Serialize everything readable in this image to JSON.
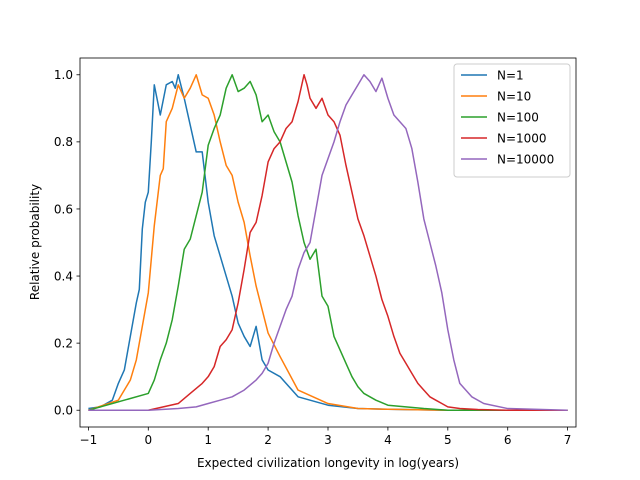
{
  "chart_data": {
    "type": "line",
    "title": "",
    "xlabel": "Expected civilization longevity in log(years)",
    "ylabel": "Relative probability",
    "xlim": [
      -1.14,
      7.14
    ],
    "ylim": [
      -0.05,
      1.05
    ],
    "xticks": [
      -1,
      0,
      1,
      2,
      3,
      4,
      5,
      6,
      7
    ],
    "xtick_labels": [
      "−1",
      "0",
      "1",
      "2",
      "3",
      "4",
      "5",
      "6",
      "7"
    ],
    "yticks": [
      0.0,
      0.2,
      0.4,
      0.6,
      0.8,
      1.0
    ],
    "ytick_labels": [
      "0.0",
      "0.2",
      "0.4",
      "0.6",
      "0.8",
      "1.0"
    ],
    "grid": false,
    "legend_position": "top-right",
    "series": [
      {
        "name": "N=1",
        "color": "#1f77b4",
        "x": [
          -1.0,
          -0.8,
          -0.6,
          -0.5,
          -0.4,
          -0.3,
          -0.2,
          -0.15,
          -0.1,
          -0.05,
          0.0,
          0.05,
          0.1,
          0.2,
          0.3,
          0.4,
          0.45,
          0.5,
          0.6,
          0.7,
          0.8,
          0.9,
          1.0,
          1.1,
          1.2,
          1.3,
          1.4,
          1.5,
          1.6,
          1.7,
          1.8,
          1.9,
          2.0,
          2.2,
          2.5,
          3.0,
          3.5,
          4.0,
          5.0,
          6.0,
          7.0
        ],
        "y": [
          0.005,
          0.01,
          0.03,
          0.08,
          0.12,
          0.22,
          0.32,
          0.36,
          0.54,
          0.62,
          0.65,
          0.8,
          0.97,
          0.88,
          0.97,
          0.98,
          0.96,
          1.0,
          0.93,
          0.85,
          0.77,
          0.77,
          0.62,
          0.52,
          0.46,
          0.4,
          0.34,
          0.26,
          0.22,
          0.19,
          0.25,
          0.15,
          0.12,
          0.1,
          0.04,
          0.015,
          0.005,
          0.003,
          0.0,
          0.0,
          0.0
        ]
      },
      {
        "name": "N=10",
        "color": "#ff7f0e",
        "x": [
          -1.0,
          -0.5,
          -0.3,
          -0.2,
          -0.1,
          0.0,
          0.1,
          0.2,
          0.25,
          0.3,
          0.4,
          0.5,
          0.6,
          0.7,
          0.8,
          0.9,
          1.0,
          1.1,
          1.2,
          1.3,
          1.4,
          1.5,
          1.6,
          1.7,
          1.8,
          1.9,
          2.0,
          2.2,
          2.5,
          3.0,
          3.5,
          4.0,
          5.0,
          6.0,
          7.0
        ],
        "y": [
          0.0,
          0.03,
          0.09,
          0.15,
          0.25,
          0.35,
          0.55,
          0.7,
          0.72,
          0.86,
          0.9,
          0.97,
          0.93,
          0.96,
          1.0,
          0.94,
          0.93,
          0.88,
          0.8,
          0.73,
          0.7,
          0.62,
          0.56,
          0.46,
          0.37,
          0.3,
          0.23,
          0.16,
          0.06,
          0.02,
          0.005,
          0.003,
          0.0,
          0.0,
          0.0
        ]
      },
      {
        "name": "N=100",
        "color": "#2ca02c",
        "x": [
          -1.0,
          0.0,
          0.1,
          0.2,
          0.3,
          0.4,
          0.5,
          0.6,
          0.7,
          0.8,
          0.9,
          1.0,
          1.1,
          1.2,
          1.3,
          1.4,
          1.5,
          1.6,
          1.7,
          1.8,
          1.9,
          2.0,
          2.1,
          2.2,
          2.3,
          2.4,
          2.5,
          2.6,
          2.7,
          2.8,
          2.9,
          3.0,
          3.1,
          3.2,
          3.3,
          3.4,
          3.5,
          3.6,
          3.8,
          4.0,
          4.3,
          4.6,
          5.0,
          5.5,
          6.0,
          7.0
        ],
        "y": [
          0.0,
          0.05,
          0.09,
          0.15,
          0.2,
          0.27,
          0.37,
          0.48,
          0.51,
          0.58,
          0.65,
          0.79,
          0.84,
          0.88,
          0.96,
          1.0,
          0.95,
          0.96,
          0.98,
          0.94,
          0.86,
          0.88,
          0.83,
          0.8,
          0.74,
          0.68,
          0.58,
          0.5,
          0.45,
          0.48,
          0.34,
          0.31,
          0.22,
          0.18,
          0.14,
          0.1,
          0.07,
          0.05,
          0.03,
          0.015,
          0.01,
          0.005,
          0.0,
          0.0,
          0.0,
          0.0
        ]
      },
      {
        "name": "N=1000",
        "color": "#d62728",
        "x": [
          -1.0,
          0.0,
          0.5,
          0.7,
          0.9,
          1.0,
          1.1,
          1.2,
          1.3,
          1.4,
          1.5,
          1.6,
          1.7,
          1.8,
          1.9,
          2.0,
          2.1,
          2.2,
          2.3,
          2.4,
          2.5,
          2.6,
          2.65,
          2.7,
          2.8,
          2.9,
          3.0,
          3.1,
          3.2,
          3.3,
          3.4,
          3.5,
          3.6,
          3.7,
          3.8,
          3.9,
          4.0,
          4.1,
          4.2,
          4.3,
          4.4,
          4.5,
          4.6,
          4.7,
          4.8,
          4.9,
          5.0,
          5.2,
          5.5,
          6.0,
          7.0
        ],
        "y": [
          0.0,
          0.0,
          0.02,
          0.05,
          0.08,
          0.1,
          0.13,
          0.19,
          0.21,
          0.24,
          0.32,
          0.42,
          0.53,
          0.56,
          0.64,
          0.74,
          0.78,
          0.8,
          0.84,
          0.86,
          0.92,
          1.0,
          0.97,
          0.93,
          0.9,
          0.93,
          0.88,
          0.86,
          0.82,
          0.73,
          0.65,
          0.57,
          0.52,
          0.46,
          0.4,
          0.33,
          0.28,
          0.22,
          0.17,
          0.14,
          0.11,
          0.08,
          0.06,
          0.04,
          0.03,
          0.02,
          0.01,
          0.005,
          0.002,
          0.0,
          0.0
        ]
      },
      {
        "name": "N=10000",
        "color": "#9467bd",
        "x": [
          -1.0,
          0.0,
          0.5,
          0.8,
          1.0,
          1.2,
          1.4,
          1.6,
          1.8,
          1.9,
          2.0,
          2.1,
          2.2,
          2.3,
          2.4,
          2.5,
          2.6,
          2.7,
          2.8,
          2.9,
          3.0,
          3.1,
          3.2,
          3.3,
          3.4,
          3.5,
          3.6,
          3.7,
          3.8,
          3.9,
          4.0,
          4.1,
          4.2,
          4.3,
          4.4,
          4.5,
          4.6,
          4.7,
          4.8,
          4.9,
          5.0,
          5.1,
          5.2,
          5.4,
          5.6,
          6.0,
          7.0
        ],
        "y": [
          0.0,
          0.0,
          0.005,
          0.01,
          0.02,
          0.03,
          0.04,
          0.06,
          0.09,
          0.11,
          0.14,
          0.2,
          0.25,
          0.3,
          0.34,
          0.42,
          0.47,
          0.5,
          0.6,
          0.7,
          0.75,
          0.8,
          0.86,
          0.91,
          0.94,
          0.97,
          1.0,
          0.98,
          0.95,
          0.99,
          0.93,
          0.88,
          0.86,
          0.84,
          0.78,
          0.68,
          0.57,
          0.5,
          0.43,
          0.35,
          0.24,
          0.15,
          0.08,
          0.04,
          0.02,
          0.005,
          0.0
        ]
      }
    ]
  }
}
